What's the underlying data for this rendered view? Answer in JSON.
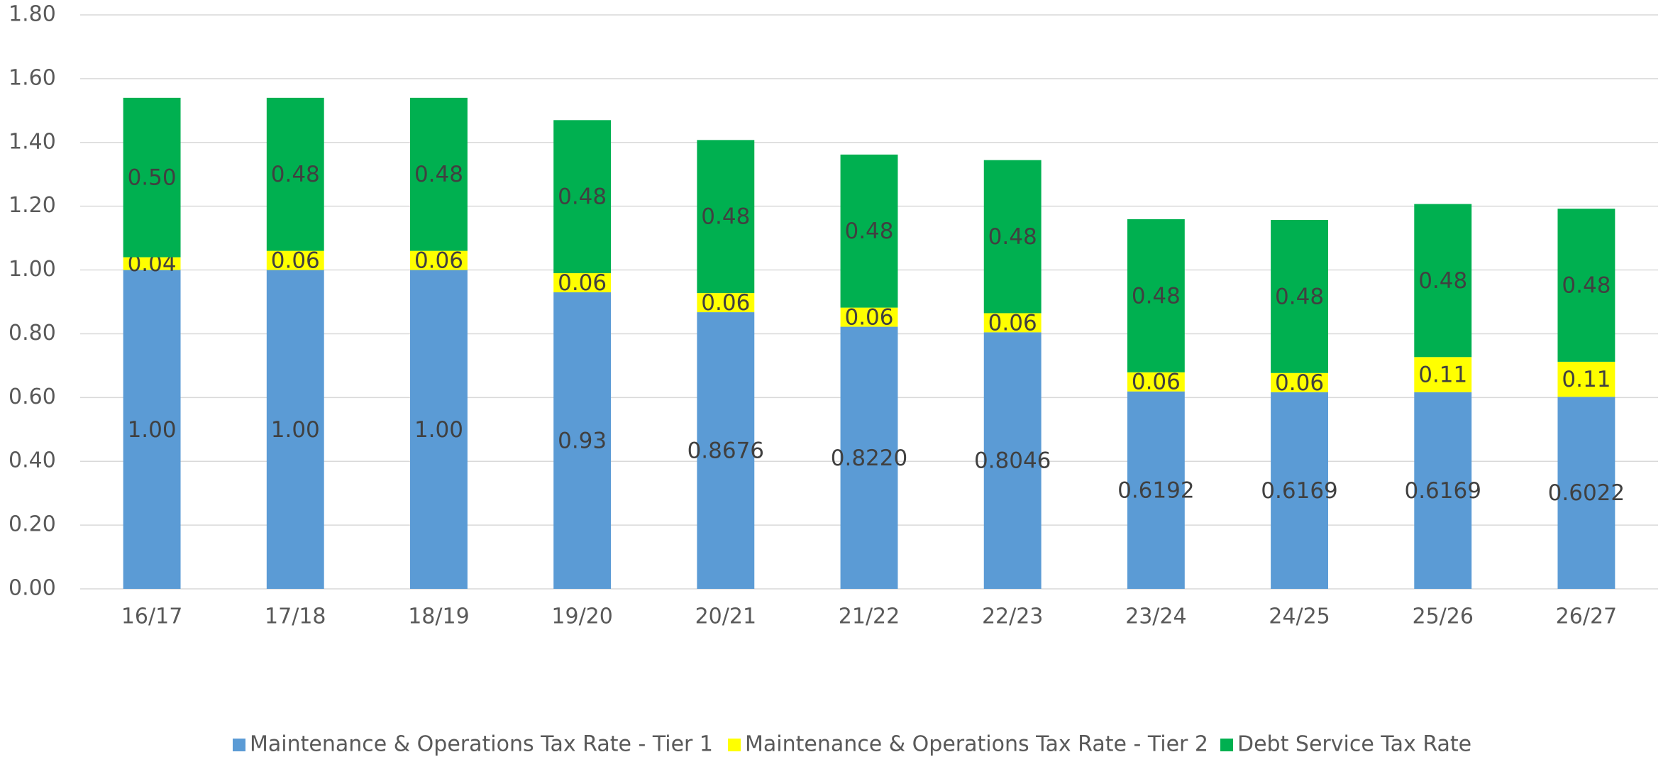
{
  "chart_data": {
    "type": "stacked_bar",
    "categories": [
      "16/17",
      "17/18",
      "18/19",
      "19/20",
      "20/21",
      "21/22",
      "22/23",
      "23/24",
      "24/25",
      "25/26",
      "26/27"
    ],
    "series": [
      {
        "name": "Maintenance & Operations Tax Rate - Tier 1",
        "color": "#5b9bd5",
        "values": [
          1.0,
          1.0,
          1.0,
          0.93,
          0.8676,
          0.822,
          0.8046,
          0.6192,
          0.6169,
          0.6169,
          0.6022
        ],
        "value_labels": [
          "1.00",
          "1.00",
          "1.00",
          "0.93",
          "0.8676",
          "0.8220",
          "0.8046",
          "0.6192",
          "0.6169",
          "0.6169",
          "0.6022"
        ]
      },
      {
        "name": "Maintenance & Operations Tax Rate - Tier 2",
        "color": "#ffff00",
        "values": [
          0.04,
          0.06,
          0.06,
          0.06,
          0.06,
          0.06,
          0.06,
          0.06,
          0.06,
          0.11,
          0.11
        ],
        "value_labels": [
          "0.04",
          "0.06",
          "0.06",
          "0.06",
          "0.06",
          "0.06",
          "0.06",
          "0.06",
          "0.06",
          "0.11",
          "0.11"
        ]
      },
      {
        "name": "Debt Service Tax Rate",
        "color": "#00b050",
        "values": [
          0.5,
          0.48,
          0.48,
          0.48,
          0.48,
          0.48,
          0.48,
          0.48,
          0.48,
          0.48,
          0.48
        ],
        "value_labels": [
          "0.50",
          "0.48",
          "0.48",
          "0.48",
          "0.48",
          "0.48",
          "0.48",
          "0.48",
          "0.48",
          "0.48",
          "0.48"
        ]
      }
    ],
    "ylim": [
      0,
      1.8
    ],
    "yticks": [
      {
        "value": 0,
        "label": "0.00"
      },
      {
        "value": 0.2,
        "label": "0.20"
      },
      {
        "value": 0.4,
        "label": "0.40"
      },
      {
        "value": 0.6,
        "label": "0.60"
      },
      {
        "value": 0.8,
        "label": "0.80"
      },
      {
        "value": 1.0,
        "label": "1.00"
      },
      {
        "value": 1.2,
        "label": "1.20"
      },
      {
        "value": 1.4,
        "label": "1.40"
      },
      {
        "value": 1.6,
        "label": "1.60"
      },
      {
        "value": 1.8,
        "label": "1.80"
      }
    ],
    "grid": true,
    "legend": "bottom"
  }
}
